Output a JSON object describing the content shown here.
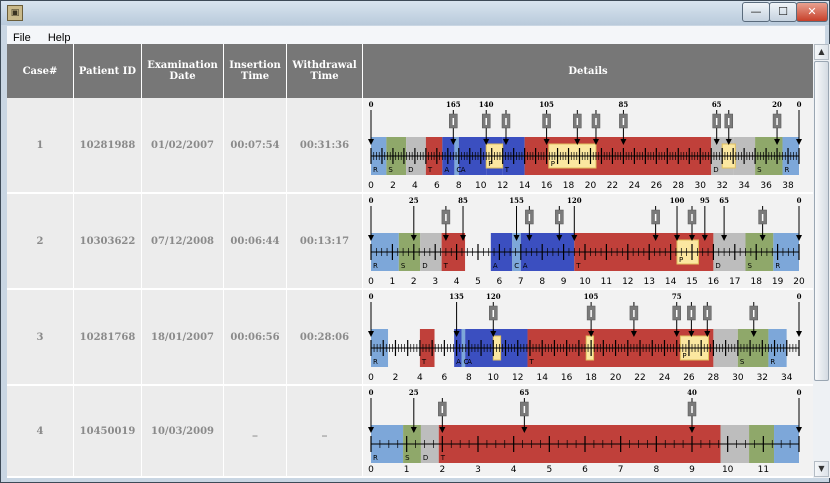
{
  "window": {
    "app_icon": "app-logo-icon",
    "minimize": "—",
    "maximize": "☐",
    "close": "✕"
  },
  "menu": [
    "File",
    "Help"
  ],
  "columns": [
    "Case#",
    "Patient ID",
    "Examination Date",
    "Insertion Time",
    "Withdrawal Time",
    "Details"
  ],
  "rows": [
    {
      "case": "1",
      "patient_id": "10281988",
      "exam_date": "01/02/2007",
      "insertion": "00:07:54",
      "withdrawal": "00:31:36",
      "axis_max": 39,
      "ticks": [
        "0",
        "2",
        "4",
        "6",
        "8",
        "10",
        "12",
        "14",
        "16",
        "18",
        "20",
        "22",
        "24",
        "26",
        "28",
        "30",
        "32",
        "34",
        "36",
        "38"
      ],
      "segments": [
        {
          "start": 0,
          "end": 1.4,
          "color": "#7da7d9",
          "label": "R"
        },
        {
          "start": 1.4,
          "end": 3.2,
          "color": "#8fa86a",
          "label": "S"
        },
        {
          "start": 3.2,
          "end": 5,
          "color": "#bdbdbd",
          "label": "D"
        },
        {
          "start": 5,
          "end": 6.5,
          "color": "#c0403a",
          "label": "T"
        },
        {
          "start": 6.5,
          "end": 7.6,
          "color": "#3b4fc0",
          "label": "A"
        },
        {
          "start": 7.6,
          "end": 8,
          "color": "#7da7d9",
          "label": "C"
        },
        {
          "start": 8,
          "end": 10.5,
          "color": "#3b4fc0",
          "label": "A"
        },
        {
          "start": 10.5,
          "end": 12,
          "color": "#3b4fc0",
          "label": ""
        },
        {
          "start": 12,
          "end": 14,
          "color": "#3b4fc0",
          "label": "T"
        },
        {
          "start": 14,
          "end": 31,
          "color": "#c0403a",
          "label": ""
        },
        {
          "start": 31,
          "end": 33,
          "color": "#bdbdbd",
          "label": "D"
        },
        {
          "start": 33,
          "end": 35,
          "color": "#bdbdbd",
          "label": ""
        },
        {
          "start": 35,
          "end": 37.5,
          "color": "#8fa86a",
          "label": "S"
        },
        {
          "start": 37.5,
          "end": 39,
          "color": "#7da7d9",
          "label": "R"
        }
      ],
      "highlights": [
        {
          "start": 10.5,
          "end": 12,
          "label": "P"
        },
        {
          "start": 16.2,
          "end": 20.5,
          "label": "P"
        },
        {
          "start": 32,
          "end": 33.2,
          "label": ""
        }
      ],
      "markers": [
        {
          "pos": 0,
          "label": "0",
          "flag": false
        },
        {
          "pos": 7.5,
          "label": "165",
          "flag": true
        },
        {
          "pos": 10.5,
          "label": "140",
          "flag": true
        },
        {
          "pos": 12.3,
          "label": "",
          "flag": true
        },
        {
          "pos": 16,
          "label": "105",
          "flag": true
        },
        {
          "pos": 18.8,
          "label": "",
          "flag": true
        },
        {
          "pos": 20.5,
          "label": "",
          "flag": true
        },
        {
          "pos": 23,
          "label": "85",
          "flag": true
        },
        {
          "pos": 31.5,
          "label": "65",
          "flag": true
        },
        {
          "pos": 32.6,
          "label": "",
          "flag": true
        },
        {
          "pos": 37,
          "label": "20",
          "flag": true
        },
        {
          "pos": 39,
          "label": "0",
          "flag": false
        }
      ]
    },
    {
      "case": "2",
      "patient_id": "10303622",
      "exam_date": "07/12/2008",
      "insertion": "00:06:44",
      "withdrawal": "00:13:17",
      "axis_max": 20,
      "ticks": [
        "0",
        "1",
        "2",
        "3",
        "4",
        "5",
        "6",
        "7",
        "8",
        "9",
        "10",
        "11",
        "12",
        "13",
        "14",
        "15",
        "16",
        "17",
        "18",
        "19",
        "20"
      ],
      "segments": [
        {
          "start": 0,
          "end": 1.3,
          "color": "#7da7d9",
          "label": "R"
        },
        {
          "start": 1.3,
          "end": 2.3,
          "color": "#8fa86a",
          "label": "S"
        },
        {
          "start": 2.3,
          "end": 3.3,
          "color": "#bdbdbd",
          "label": "D"
        },
        {
          "start": 3.3,
          "end": 4.4,
          "color": "#c0403a",
          "label": "T"
        },
        {
          "start": 4.4,
          "end": 5.6,
          "color": "#f2f2f2",
          "label": ""
        },
        {
          "start": 5.6,
          "end": 6.6,
          "color": "#3b4fc0",
          "label": "A"
        },
        {
          "start": 6.6,
          "end": 7,
          "color": "#7da7d9",
          "label": "C"
        },
        {
          "start": 7,
          "end": 9.5,
          "color": "#3b4fc0",
          "label": "A"
        },
        {
          "start": 9.5,
          "end": 16,
          "color": "#c0403a",
          "label": "T"
        },
        {
          "start": 16,
          "end": 17.5,
          "color": "#bdbdbd",
          "label": "D"
        },
        {
          "start": 17.5,
          "end": 18.8,
          "color": "#8fa86a",
          "label": "S"
        },
        {
          "start": 18.8,
          "end": 20,
          "color": "#7da7d9",
          "label": "R"
        }
      ],
      "highlights": [
        {
          "start": 14.3,
          "end": 15.3,
          "label": "P"
        }
      ],
      "markers": [
        {
          "pos": 0,
          "label": "0",
          "flag": false
        },
        {
          "pos": 2,
          "label": "25",
          "flag": false
        },
        {
          "pos": 3.5,
          "label": "",
          "flag": true
        },
        {
          "pos": 4.3,
          "label": "85",
          "flag": false
        },
        {
          "pos": 6.8,
          "label": "155",
          "flag": false
        },
        {
          "pos": 7.4,
          "label": "",
          "flag": true
        },
        {
          "pos": 8.8,
          "label": "",
          "flag": true
        },
        {
          "pos": 9.5,
          "label": "120",
          "flag": false
        },
        {
          "pos": 13.3,
          "label": "",
          "flag": true
        },
        {
          "pos": 14.3,
          "label": "100",
          "flag": false
        },
        {
          "pos": 15,
          "label": "",
          "flag": true
        },
        {
          "pos": 15.6,
          "label": "95",
          "flag": false
        },
        {
          "pos": 16.5,
          "label": "65",
          "flag": false
        },
        {
          "pos": 18.3,
          "label": "",
          "flag": true
        },
        {
          "pos": 20,
          "label": "0",
          "flag": false
        }
      ]
    },
    {
      "case": "3",
      "patient_id": "10281768",
      "exam_date": "18/01/2007",
      "insertion": "00:06:56",
      "withdrawal": "00:28:06",
      "axis_max": 35,
      "ticks": [
        "0",
        "2",
        "4",
        "6",
        "8",
        "10",
        "12",
        "14",
        "16",
        "18",
        "20",
        "22",
        "24",
        "26",
        "28",
        "30",
        "32",
        "34"
      ],
      "segments": [
        {
          "start": 0,
          "end": 1.4,
          "color": "#7da7d9",
          "label": "R"
        },
        {
          "start": 1.4,
          "end": 4,
          "color": "#f2f2f2",
          "label": ""
        },
        {
          "start": 4,
          "end": 5.2,
          "color": "#c0403a",
          "label": "T"
        },
        {
          "start": 5.2,
          "end": 6.8,
          "color": "#f2f2f2",
          "label": ""
        },
        {
          "start": 6.8,
          "end": 7.4,
          "color": "#3b4fc0",
          "label": "A"
        },
        {
          "start": 7.4,
          "end": 7.7,
          "color": "#7da7d9",
          "label": "C"
        },
        {
          "start": 7.7,
          "end": 12.8,
          "color": "#3b4fc0",
          "label": "A"
        },
        {
          "start": 12.8,
          "end": 28,
          "color": "#c0403a",
          "label": "T"
        },
        {
          "start": 28,
          "end": 30,
          "color": "#bdbdbd",
          "label": ""
        },
        {
          "start": 30,
          "end": 32.5,
          "color": "#8fa86a",
          "label": "S"
        },
        {
          "start": 32.5,
          "end": 34,
          "color": "#7da7d9",
          "label": "R"
        },
        {
          "start": 34,
          "end": 35,
          "color": "#f2f2f2",
          "label": ""
        }
      ],
      "highlights": [
        {
          "start": 10,
          "end": 10.6,
          "label": ""
        },
        {
          "start": 17.6,
          "end": 18.2,
          "label": ""
        },
        {
          "start": 25.3,
          "end": 27.6,
          "label": "P"
        }
      ],
      "markers": [
        {
          "pos": 0,
          "label": "0",
          "flag": false
        },
        {
          "pos": 7,
          "label": "135",
          "flag": false
        },
        {
          "pos": 10,
          "label": "120",
          "flag": true
        },
        {
          "pos": 18,
          "label": "105",
          "flag": true
        },
        {
          "pos": 21.5,
          "label": "",
          "flag": true
        },
        {
          "pos": 25,
          "label": "75",
          "flag": true
        },
        {
          "pos": 26.2,
          "label": "",
          "flag": true
        },
        {
          "pos": 27.5,
          "label": "",
          "flag": true
        },
        {
          "pos": 31.3,
          "label": "",
          "flag": true
        },
        {
          "pos": 35,
          "label": "0",
          "flag": false
        }
      ]
    },
    {
      "case": "4",
      "patient_id": "10450019",
      "exam_date": "10/03/2009",
      "insertion": "_",
      "withdrawal": "_",
      "axis_max": 12,
      "ticks": [
        "0",
        "1",
        "2",
        "3",
        "4",
        "5",
        "6",
        "7",
        "8",
        "9",
        "10",
        "11"
      ],
      "segments": [
        {
          "start": 0,
          "end": 0.9,
          "color": "#7da7d9",
          "label": "R"
        },
        {
          "start": 0.9,
          "end": 1.4,
          "color": "#8fa86a",
          "label": "S"
        },
        {
          "start": 1.4,
          "end": 1.9,
          "color": "#bdbdbd",
          "label": "D"
        },
        {
          "start": 1.9,
          "end": 9.8,
          "color": "#c0403a",
          "label": "T"
        },
        {
          "start": 9.8,
          "end": 10.6,
          "color": "#bdbdbd",
          "label": ""
        },
        {
          "start": 10.6,
          "end": 11.3,
          "color": "#8fa86a",
          "label": ""
        },
        {
          "start": 11.3,
          "end": 12,
          "color": "#7da7d9",
          "label": ""
        }
      ],
      "highlights": [],
      "markers": [
        {
          "pos": 0,
          "label": "0",
          "flag": false
        },
        {
          "pos": 1.2,
          "label": "25",
          "flag": false
        },
        {
          "pos": 2,
          "label": "",
          "flag": true
        },
        {
          "pos": 4.3,
          "label": "65",
          "flag": true
        },
        {
          "pos": 9,
          "label": "40",
          "flag": true
        },
        {
          "pos": 12,
          "label": "0",
          "flag": false
        }
      ]
    }
  ]
}
